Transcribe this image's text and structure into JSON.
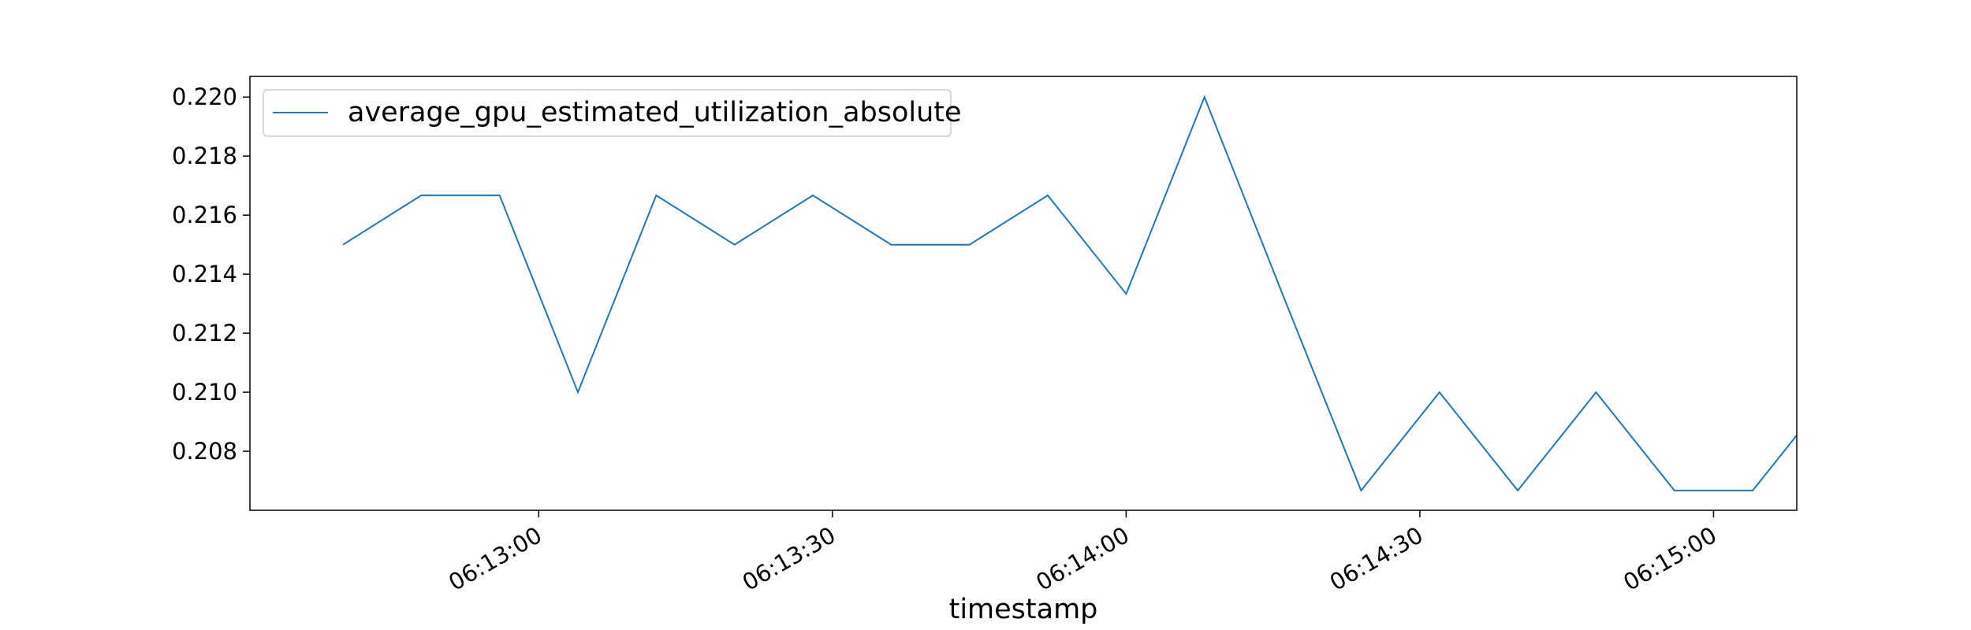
{
  "chart_data": {
    "type": "line",
    "title": "",
    "xlabel": "timestamp",
    "ylabel": "",
    "x_type": "time",
    "x": [
      "06:12:40",
      "06:12:48",
      "06:12:56",
      "06:13:04",
      "06:13:12",
      "06:13:20",
      "06:13:28",
      "06:13:36",
      "06:13:44",
      "06:13:52",
      "06:14:00",
      "06:14:08",
      "06:14:16",
      "06:14:24",
      "06:14:32",
      "06:14:40",
      "06:14:48",
      "06:14:56",
      "06:15:04",
      "06:15:12"
    ],
    "x_range": [
      "06:12:30.5",
      "06:15:08.5"
    ],
    "x_ticks": [
      "06:13:00",
      "06:13:30",
      "06:14:00",
      "06:14:30",
      "06:15:00"
    ],
    "y_ticks": [
      "0.208",
      "0.210",
      "0.212",
      "0.214",
      "0.216",
      "0.218",
      "0.220"
    ],
    "ylim": [
      0.206,
      0.2207
    ],
    "series": [
      {
        "name": "average_gpu_estimated_utilization_absolute",
        "color": "#1f77b4",
        "values": [
          0.215,
          0.21667,
          0.21667,
          0.21,
          0.21667,
          0.215,
          0.21667,
          0.215,
          0.215,
          0.21667,
          0.21333,
          0.22,
          0.2133,
          0.20667,
          0.21,
          0.20667,
          0.21,
          0.20667,
          0.20667,
          0.21
        ]
      }
    ],
    "grid": false,
    "legend_position": "upper left"
  }
}
